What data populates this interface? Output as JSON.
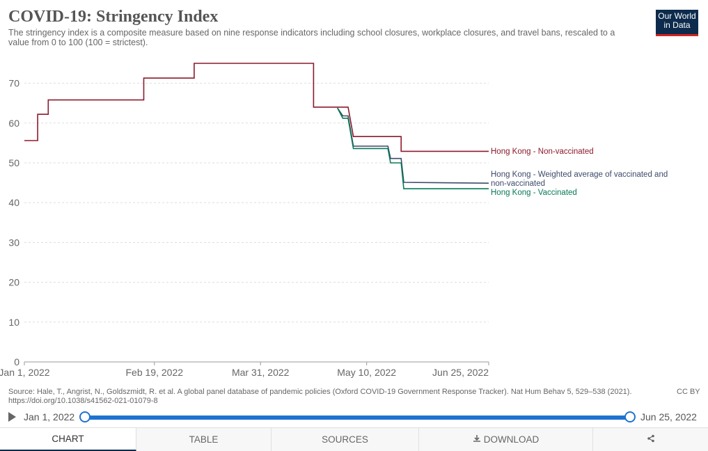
{
  "header": {
    "title": "COVID-19: Stringency Index",
    "subtitle": "The stringency index is a composite measure based on nine response indicators including school closures, workplace closures, and travel bans, rescaled to a value from 0 to 100 (100 = strictest)."
  },
  "logo": {
    "line1": "Our World",
    "line2": "in Data"
  },
  "colors": {
    "non_vaccinated": "#8b1a2b",
    "weighted": "#3d4a6b",
    "vaccinated": "#087a56",
    "slider": "#1e72d0",
    "grid": "#dddddd"
  },
  "chart_data": {
    "type": "line",
    "x_ticks": [
      "Jan 1, 2022",
      "Feb 19, 2022",
      "Mar 31, 2022",
      "May 10, 2022",
      "Jun 25, 2022"
    ],
    "x_tick_days": [
      0,
      49,
      89,
      129,
      175
    ],
    "y_ticks": [
      0,
      10,
      20,
      30,
      40,
      50,
      60,
      70
    ],
    "ylim": [
      0,
      77
    ],
    "xlim_days": [
      0,
      175
    ],
    "grid": true,
    "series": [
      {
        "name": "Hong Kong - Non-vaccinated",
        "key": "non_vaccinated",
        "points": [
          [
            0,
            55.6
          ],
          [
            5,
            55.6
          ],
          [
            5,
            62.2
          ],
          [
            9,
            62.2
          ],
          [
            9,
            65.8
          ],
          [
            45,
            65.8
          ],
          [
            45,
            71.3
          ],
          [
            64,
            71.3
          ],
          [
            64,
            75
          ],
          [
            109,
            75
          ],
          [
            109,
            64
          ],
          [
            122,
            64
          ],
          [
            124,
            56.6
          ],
          [
            142,
            56.6
          ],
          [
            142,
            52.9
          ],
          [
            175,
            52.9
          ]
        ]
      },
      {
        "name": "Hong Kong - Weighted average of vaccinated and non-vaccinated",
        "key": "weighted",
        "points": [
          [
            118,
            63.8
          ],
          [
            120,
            61.8
          ],
          [
            122,
            61.8
          ],
          [
            124,
            54.2
          ],
          [
            137,
            54.2
          ],
          [
            138,
            51.1
          ],
          [
            142,
            51.1
          ],
          [
            143,
            45.1
          ],
          [
            175,
            44.9
          ]
        ]
      },
      {
        "name": "Hong Kong - Vaccinated",
        "key": "vaccinated",
        "points": [
          [
            118,
            63.8
          ],
          [
            120,
            61.2
          ],
          [
            122,
            61.2
          ],
          [
            124,
            53.6
          ],
          [
            137,
            53.6
          ],
          [
            138,
            50
          ],
          [
            142,
            50
          ],
          [
            143,
            43.5
          ],
          [
            175,
            43.5
          ]
        ]
      }
    ],
    "labels": {
      "non_vaccinated": "Hong Kong - Non-vaccinated",
      "weighted_line1": "Hong Kong - Weighted average of vaccinated and",
      "weighted_line2": "non-vaccinated",
      "vaccinated": "Hong Kong - Vaccinated"
    }
  },
  "source": {
    "line1": "Source: Hale, T., Angrist, N., Goldszmidt, R. et al. A global panel database of pandemic policies (Oxford COVID-19 Government Response Tracker). Nat Hum Behav 5, 529–538 (2021).",
    "line2": "https://doi.org/10.1038/s41562-021-01079-8",
    "license": "CC BY"
  },
  "timeline": {
    "start": "Jan 1, 2022",
    "end": "Jun 25, 2022",
    "start_fraction": 0,
    "end_fraction": 1
  },
  "tabs": {
    "chart": "CHART",
    "table": "TABLE",
    "sources": "SOURCES",
    "download": "DOWNLOAD"
  }
}
